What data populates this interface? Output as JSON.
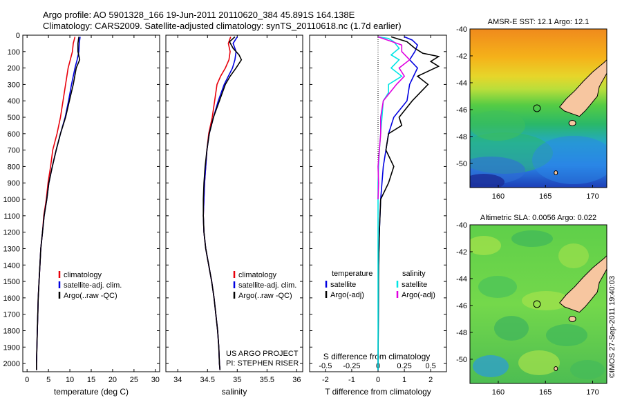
{
  "header": {
    "line1": "Argo profile: AO 5901328_166 19-Jun-2011 20110620_384 45.891S 164.138E",
    "line2": "Climatology: CARS2009. Satellite-adjusted climatology: synTS_20110618.nc (1.7d earlier)"
  },
  "credits": {
    "project": "US ARGO PROJECT",
    "pi": "PI: STEPHEN RISER",
    "stamp": "©IMOS 27-Sep-2011 19:40:03"
  },
  "colors": {
    "climatology": "#e8000b",
    "satellite": "#0000e0",
    "argo": "#000000",
    "sal_satellite": "#00e5e5",
    "sal_argo": "#e000e0",
    "land": "#f7c6a0"
  },
  "chart_data": [
    {
      "id": "temperature",
      "type": "line",
      "xlabel": "temperature (deg C)",
      "xlim": [
        -1,
        31
      ],
      "ylim": [
        2050,
        0
      ],
      "xticks": [
        0,
        5,
        10,
        15,
        20,
        25,
        30
      ],
      "yticks": [
        0,
        100,
        200,
        300,
        400,
        500,
        600,
        700,
        800,
        900,
        1000,
        1100,
        1200,
        1300,
        1400,
        1500,
        1600,
        1700,
        1800,
        1900,
        2000
      ],
      "legend": {
        "placement": "lower-center",
        "entries": [
          "climatology",
          "satellite-adj. clim.",
          "Argo(..raw -QC)"
        ]
      },
      "series": [
        {
          "name": "climatology",
          "color": "#e8000b",
          "points": [
            [
              11.2,
              10
            ],
            [
              10.8,
              50
            ],
            [
              10.6,
              100
            ],
            [
              10.1,
              150
            ],
            [
              9.6,
              200
            ],
            [
              9.0,
              300
            ],
            [
              8.4,
              400
            ],
            [
              7.8,
              500
            ],
            [
              7.0,
              600
            ],
            [
              6.0,
              700
            ],
            [
              5.5,
              800
            ],
            [
              4.9,
              900
            ],
            [
              4.5,
              1000
            ],
            [
              3.9,
              1100
            ],
            [
              3.6,
              1200
            ],
            [
              3.2,
              1300
            ],
            [
              3.0,
              1400
            ],
            [
              2.8,
              1500
            ],
            [
              2.6,
              1600
            ],
            [
              2.5,
              1700
            ],
            [
              2.4,
              1800
            ],
            [
              2.3,
              1900
            ],
            [
              2.2,
              2000
            ],
            [
              2.2,
              2040
            ]
          ]
        },
        {
          "name": "satellite-adj. clim.",
          "color": "#0000e0",
          "points": [
            [
              12.4,
              10
            ],
            [
              12.2,
              50
            ],
            [
              12.1,
              100
            ],
            [
              11.7,
              150
            ],
            [
              11.2,
              200
            ],
            [
              10.4,
              300
            ],
            [
              9.7,
              400
            ],
            [
              8.9,
              500
            ],
            [
              7.8,
              600
            ],
            [
              6.8,
              700
            ],
            [
              5.9,
              800
            ],
            [
              5.1,
              900
            ],
            [
              4.6,
              1000
            ],
            [
              4.0,
              1100
            ],
            [
              3.6,
              1200
            ],
            [
              3.2,
              1300
            ],
            [
              3.0,
              1400
            ],
            [
              2.8,
              1500
            ],
            [
              2.6,
              1600
            ],
            [
              2.5,
              1700
            ],
            [
              2.4,
              1800
            ],
            [
              2.3,
              1900
            ],
            [
              2.2,
              2000
            ],
            [
              2.2,
              2040
            ]
          ]
        },
        {
          "name": "Argo(..raw -QC)",
          "color": "#000000",
          "points": [
            [
              12.1,
              10
            ],
            [
              11.9,
              50
            ],
            [
              11.9,
              100
            ],
            [
              12.3,
              150
            ],
            [
              11.5,
              200
            ],
            [
              10.8,
              300
            ],
            [
              9.9,
              400
            ],
            [
              9.0,
              500
            ],
            [
              7.8,
              600
            ],
            [
              6.8,
              700
            ],
            [
              5.9,
              800
            ],
            [
              5.1,
              900
            ],
            [
              4.6,
              1000
            ],
            [
              4.0,
              1100
            ],
            [
              3.6,
              1200
            ],
            [
              3.2,
              1300
            ],
            [
              3.0,
              1400
            ],
            [
              2.8,
              1500
            ],
            [
              2.6,
              1600
            ],
            [
              2.5,
              1700
            ],
            [
              2.4,
              1800
            ],
            [
              2.3,
              1900
            ],
            [
              2.2,
              2000
            ],
            [
              2.2,
              2040
            ]
          ]
        }
      ]
    },
    {
      "id": "salinity",
      "type": "line",
      "xlabel": "salinity",
      "xlim": [
        33.8,
        36.1
      ],
      "ylim": [
        2050,
        0
      ],
      "xticks": [
        34,
        34.5,
        35,
        35.5,
        36
      ],
      "legend": {
        "placement": "lower-center",
        "entries": [
          "climatology",
          "satellite-adj. clim.",
          "Argo(..raw -QC)"
        ]
      },
      "series": [
        {
          "name": "climatology",
          "color": "#e8000b",
          "points": [
            [
              34.89,
              10
            ],
            [
              34.85,
              50
            ],
            [
              34.88,
              100
            ],
            [
              34.86,
              150
            ],
            [
              34.8,
              200
            ],
            [
              34.72,
              250
            ],
            [
              34.66,
              300
            ],
            [
              34.62,
              400
            ],
            [
              34.58,
              500
            ],
            [
              34.52,
              600
            ],
            [
              34.49,
              700
            ],
            [
              34.47,
              800
            ],
            [
              34.45,
              900
            ],
            [
              34.44,
              1000
            ],
            [
              34.43,
              1100
            ],
            [
              34.44,
              1200
            ],
            [
              34.47,
              1300
            ],
            [
              34.52,
              1400
            ],
            [
              34.57,
              1500
            ],
            [
              34.61,
              1600
            ],
            [
              34.64,
              1700
            ],
            [
              34.67,
              1800
            ],
            [
              34.69,
              1900
            ],
            [
              34.7,
              2000
            ],
            [
              34.71,
              2040
            ]
          ]
        },
        {
          "name": "satellite-adj. clim.",
          "color": "#0000e0",
          "points": [
            [
              35.0,
              10
            ],
            [
              34.93,
              50
            ],
            [
              34.98,
              100
            ],
            [
              34.96,
              150
            ],
            [
              34.92,
              200
            ],
            [
              34.85,
              250
            ],
            [
              34.78,
              300
            ],
            [
              34.68,
              400
            ],
            [
              34.6,
              500
            ],
            [
              34.53,
              600
            ],
            [
              34.49,
              700
            ],
            [
              34.47,
              800
            ],
            [
              34.45,
              900
            ],
            [
              34.44,
              1000
            ],
            [
              34.43,
              1100
            ],
            [
              34.44,
              1200
            ],
            [
              34.47,
              1300
            ],
            [
              34.52,
              1400
            ],
            [
              34.57,
              1500
            ],
            [
              34.61,
              1600
            ],
            [
              34.64,
              1700
            ],
            [
              34.67,
              1800
            ],
            [
              34.69,
              1900
            ],
            [
              34.7,
              2000
            ],
            [
              34.71,
              2040
            ]
          ]
        },
        {
          "name": "Argo(..raw -QC)",
          "color": "#000000",
          "points": [
            [
              34.96,
              10
            ],
            [
              34.87,
              40
            ],
            [
              34.93,
              80
            ],
            [
              35.03,
              120
            ],
            [
              35.07,
              150
            ],
            [
              34.98,
              200
            ],
            [
              34.88,
              250
            ],
            [
              34.8,
              300
            ],
            [
              34.7,
              400
            ],
            [
              34.6,
              500
            ],
            [
              34.53,
              600
            ],
            [
              34.49,
              700
            ],
            [
              34.46,
              800
            ],
            [
              34.44,
              900
            ],
            [
              34.43,
              1000
            ],
            [
              34.43,
              1100
            ],
            [
              34.44,
              1200
            ],
            [
              34.47,
              1300
            ],
            [
              34.52,
              1400
            ],
            [
              34.57,
              1500
            ],
            [
              34.61,
              1600
            ],
            [
              34.64,
              1700
            ],
            [
              34.67,
              1800
            ],
            [
              34.69,
              1900
            ],
            [
              34.7,
              2000
            ],
            [
              34.71,
              2040
            ]
          ]
        }
      ]
    },
    {
      "id": "difference",
      "type": "line",
      "xlabel": "T difference from climatology",
      "xlabel_top": "S difference from climatology",
      "xlim": [
        -2.6,
        2.6
      ],
      "ylim": [
        2050,
        0
      ],
      "xticks": [
        -2,
        -1,
        0,
        1,
        2
      ],
      "xticks_top": [
        "-0.5",
        "-0.25",
        "0",
        "0.25",
        "0.5"
      ],
      "xticks_top_pos": [
        -2,
        -1,
        0,
        1,
        2
      ],
      "legend": {
        "placement": "lower-center",
        "headers": [
          "temperature",
          "salinity"
        ],
        "entries": [
          "satellite",
          "Argo(-adj)",
          "satellite",
          "Argo(-adj)"
        ]
      },
      "series": [
        {
          "name": "temperature satellite",
          "color": "#0000e0",
          "points": [
            [
              1.0,
              10
            ],
            [
              1.3,
              30
            ],
            [
              1.5,
              60
            ],
            [
              1.4,
              100
            ],
            [
              1.2,
              150
            ],
            [
              1.5,
              200
            ],
            [
              1.2,
              300
            ],
            [
              1.1,
              400
            ],
            [
              0.6,
              500
            ],
            [
              0.4,
              600
            ],
            [
              0.3,
              700
            ],
            [
              0.2,
              800
            ],
            [
              0.15,
              900
            ],
            [
              0.1,
              1000
            ],
            [
              0.05,
              1200
            ],
            [
              0.02,
              1400
            ],
            [
              0,
              2040
            ]
          ]
        },
        {
          "name": "temperature Argo(-adj)",
          "color": "#000000",
          "points": [
            [
              0.5,
              10
            ],
            [
              1.1,
              40
            ],
            [
              1.4,
              80
            ],
            [
              1.7,
              110
            ],
            [
              2.3,
              130
            ],
            [
              2.0,
              160
            ],
            [
              2.3,
              190
            ],
            [
              1.5,
              250
            ],
            [
              1.9,
              300
            ],
            [
              1.3,
              400
            ],
            [
              0.8,
              500
            ],
            [
              0.9,
              550
            ],
            [
              0.4,
              600
            ],
            [
              0.3,
              700
            ],
            [
              0.6,
              800
            ],
            [
              0.4,
              900
            ],
            [
              0.1,
              1000
            ],
            [
              0.05,
              1200
            ],
            [
              0.02,
              1400
            ],
            [
              0,
              2040
            ]
          ]
        },
        {
          "name": "salinity satellite",
          "color": "#00e5e5",
          "points": [
            [
              0.0,
              10
            ],
            [
              0.4,
              20
            ],
            [
              0.6,
              40
            ],
            [
              0.8,
              80
            ],
            [
              0.5,
              120
            ],
            [
              0.8,
              150
            ],
            [
              0.5,
              200
            ],
            [
              0.9,
              250
            ],
            [
              0.4,
              300
            ],
            [
              0.4,
              350
            ],
            [
              0.2,
              400
            ],
            [
              0.15,
              500
            ],
            [
              0.1,
              600
            ],
            [
              0.05,
              700
            ],
            [
              0.02,
              800
            ],
            [
              0.0,
              900
            ],
            [
              0.0,
              2040
            ]
          ]
        },
        {
          "name": "salinity Argo(-adj)",
          "color": "#e000e0",
          "points": [
            [
              0.0,
              10
            ],
            [
              0.9,
              60
            ],
            [
              0.9,
              100
            ],
            [
              1.2,
              150
            ],
            [
              0.8,
              200
            ],
            [
              1.0,
              250
            ],
            [
              0.7,
              300
            ],
            [
              0.2,
              400
            ],
            [
              0.1,
              500
            ],
            [
              0.1,
              600
            ],
            [
              0.05,
              700
            ],
            [
              0.0,
              800
            ],
            [
              0.02,
              900
            ],
            [
              0.0,
              1000
            ]
          ]
        }
      ]
    },
    {
      "id": "sst_map",
      "type": "heatmap",
      "title": "AMSR-E SST: 12.1 Argo: 12.1",
      "xlim": [
        157,
        171.5
      ],
      "ylim": [
        -51.8,
        -40
      ],
      "xticks": [
        160,
        165,
        170
      ],
      "yticks": [
        -40,
        -42,
        -44,
        -46,
        -48,
        -50
      ],
      "argo_position": [
        164.1,
        -45.9
      ]
    },
    {
      "id": "sla_map",
      "type": "heatmap",
      "title": "Altimetric SLA: 0.0056 Argo: 0.022",
      "xlim": [
        157,
        171.5
      ],
      "ylim": [
        -51.8,
        -40
      ],
      "xticks": [
        160,
        165,
        170
      ],
      "yticks": [
        -40,
        -42,
        -44,
        -46,
        -48,
        -50
      ],
      "argo_position": [
        164.1,
        -45.9
      ]
    }
  ]
}
